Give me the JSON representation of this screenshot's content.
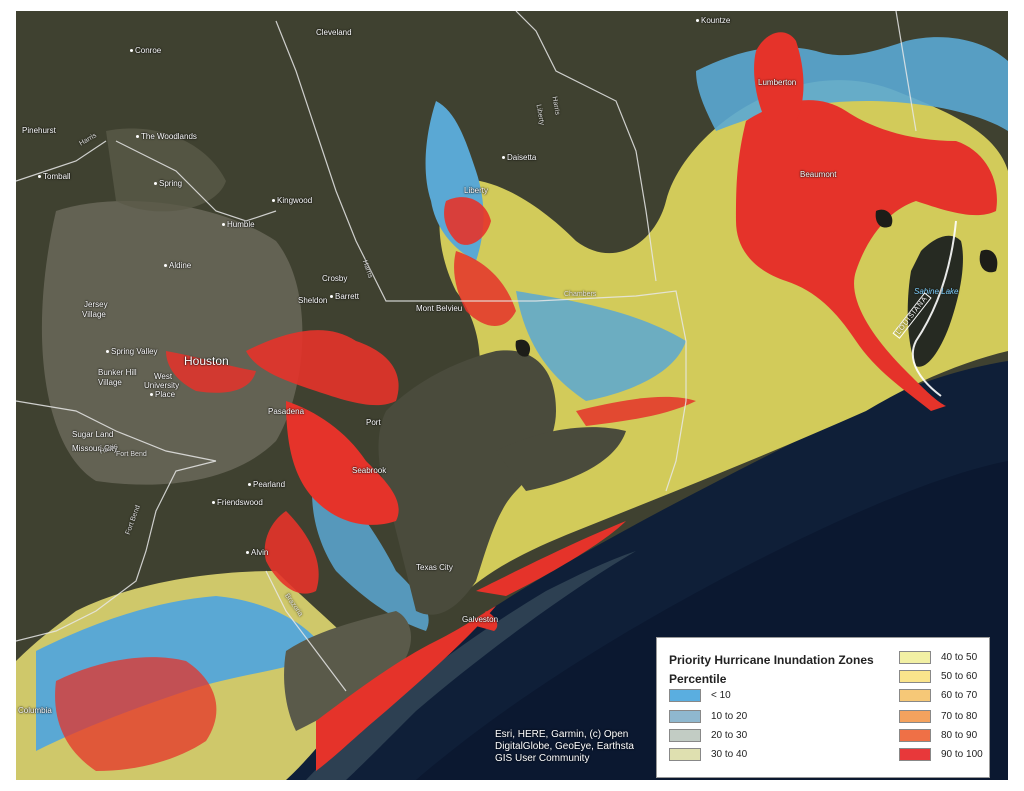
{
  "map": {
    "places": [
      {
        "name": "Kountze",
        "dot": true
      },
      {
        "name": "Cleveland",
        "dot": false
      },
      {
        "name": "Conroe",
        "dot": true
      },
      {
        "name": "Lumberton",
        "dot": false
      },
      {
        "name": "Pinehurst",
        "dot": false
      },
      {
        "name": "The Woodlands",
        "dot": true
      },
      {
        "name": "Daisetta",
        "dot": true
      },
      {
        "name": "Tomball",
        "dot": true
      },
      {
        "name": "Spring",
        "dot": true
      },
      {
        "name": "Liberty",
        "dot": false
      },
      {
        "name": "Kingwood",
        "dot": true
      },
      {
        "name": "Humble",
        "dot": true
      },
      {
        "name": "Aldine",
        "dot": true
      },
      {
        "name": "Crosby",
        "dot": false
      },
      {
        "name": "Barrett",
        "dot": true
      },
      {
        "name": "Sheldon",
        "dot": false
      },
      {
        "name": "Jersey",
        "dot": false
      },
      {
        "name": "Village",
        "dot": false
      },
      {
        "name": "Mont Belvieu",
        "dot": false
      },
      {
        "name": "Spring Valley",
        "dot": true
      },
      {
        "name": "Houston",
        "dot": false
      },
      {
        "name": "Bunker Hill",
        "dot": false
      },
      {
        "name": "Village",
        "dot": false
      },
      {
        "name": "West",
        "dot": false
      },
      {
        "name": "University",
        "dot": false
      },
      {
        "name": "Place",
        "dot": true
      },
      {
        "name": "Pasadena",
        "dot": false
      },
      {
        "name": "Sugar Land",
        "dot": false
      },
      {
        "name": "Missouri City",
        "dot": false
      },
      {
        "name": "Seabrook",
        "dot": false
      },
      {
        "name": "Pearland",
        "dot": true
      },
      {
        "name": "Friendswood",
        "dot": true
      },
      {
        "name": "Alvin",
        "dot": true
      },
      {
        "name": "Texas City",
        "dot": false
      },
      {
        "name": "Galveston",
        "dot": false
      },
      {
        "name": "Columbia",
        "dot": false
      },
      {
        "name": "Port",
        "dot": false
      },
      {
        "name": "Beaumont",
        "dot": false
      }
    ],
    "roads": [
      "Liberty",
      "Harris",
      "Harris",
      "Harris",
      "Chambers",
      "Fort Bend",
      "Harris",
      "Fort Bend",
      "Brazoria"
    ],
    "water": "Sabine Lake",
    "state": "LOUISIANA",
    "colors": {
      "land": "#3d3f2f",
      "bay": "#4a4a3a",
      "gulf": "#10203a",
      "yellow": "#d4cd5c",
      "blue": "#5aa7d2",
      "red": "#e5332a"
    }
  },
  "attribution": {
    "line1": "Esri, HERE, Garmin, (c) Open",
    "line2": "DigitalGlobe, GeoEye, Earthsta",
    "line3": "GIS User Community"
  },
  "legend": {
    "title": "Priority Hurricane Inundation Zones",
    "subtitle": "Percentile",
    "items": [
      {
        "label": "< 10",
        "color": "#5aaee0"
      },
      {
        "label": "10 to 20",
        "color": "#8fb8cf"
      },
      {
        "label": "20 to 30",
        "color": "#c2ccc4"
      },
      {
        "label": "30 to 40",
        "color": "#dfe0b0"
      },
      {
        "label": "40 to 50",
        "color": "#f2f0a4"
      },
      {
        "label": "50 to 60",
        "color": "#fae48c"
      },
      {
        "label": "60 to 70",
        "color": "#f6c877"
      },
      {
        "label": "70 to 80",
        "color": "#f4a25e"
      },
      {
        "label": "80 to 90",
        "color": "#ef7046"
      },
      {
        "label": "90 to 100",
        "color": "#e8383a"
      }
    ]
  }
}
